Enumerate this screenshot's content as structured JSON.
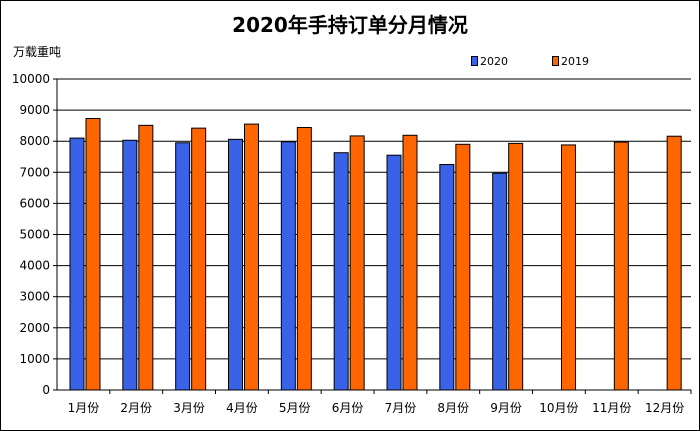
{
  "chart_data": {
    "type": "bar",
    "title": "2020年手持订单分月情况",
    "ylabel": "万载重吨",
    "xlabel": "",
    "ylim": [
      0,
      10000
    ],
    "ytick_step": 1000,
    "grid": true,
    "legend_position": "top-right",
    "categories": [
      "1月份",
      "2月份",
      "3月份",
      "4月份",
      "5月份",
      "6月份",
      "7月份",
      "8月份",
      "9月份",
      "10月份",
      "11月份",
      "12月份"
    ],
    "series": [
      {
        "name": "2020",
        "color": "#3a62e6",
        "values": [
          8100,
          8030,
          7950,
          8060,
          7980,
          7630,
          7550,
          7250,
          6970,
          null,
          null,
          null
        ]
      },
      {
        "name": "2019",
        "color": "#ff6600",
        "values": [
          8730,
          8510,
          8420,
          8550,
          8440,
          8170,
          8190,
          7900,
          7930,
          7880,
          7970,
          8160
        ]
      }
    ]
  }
}
